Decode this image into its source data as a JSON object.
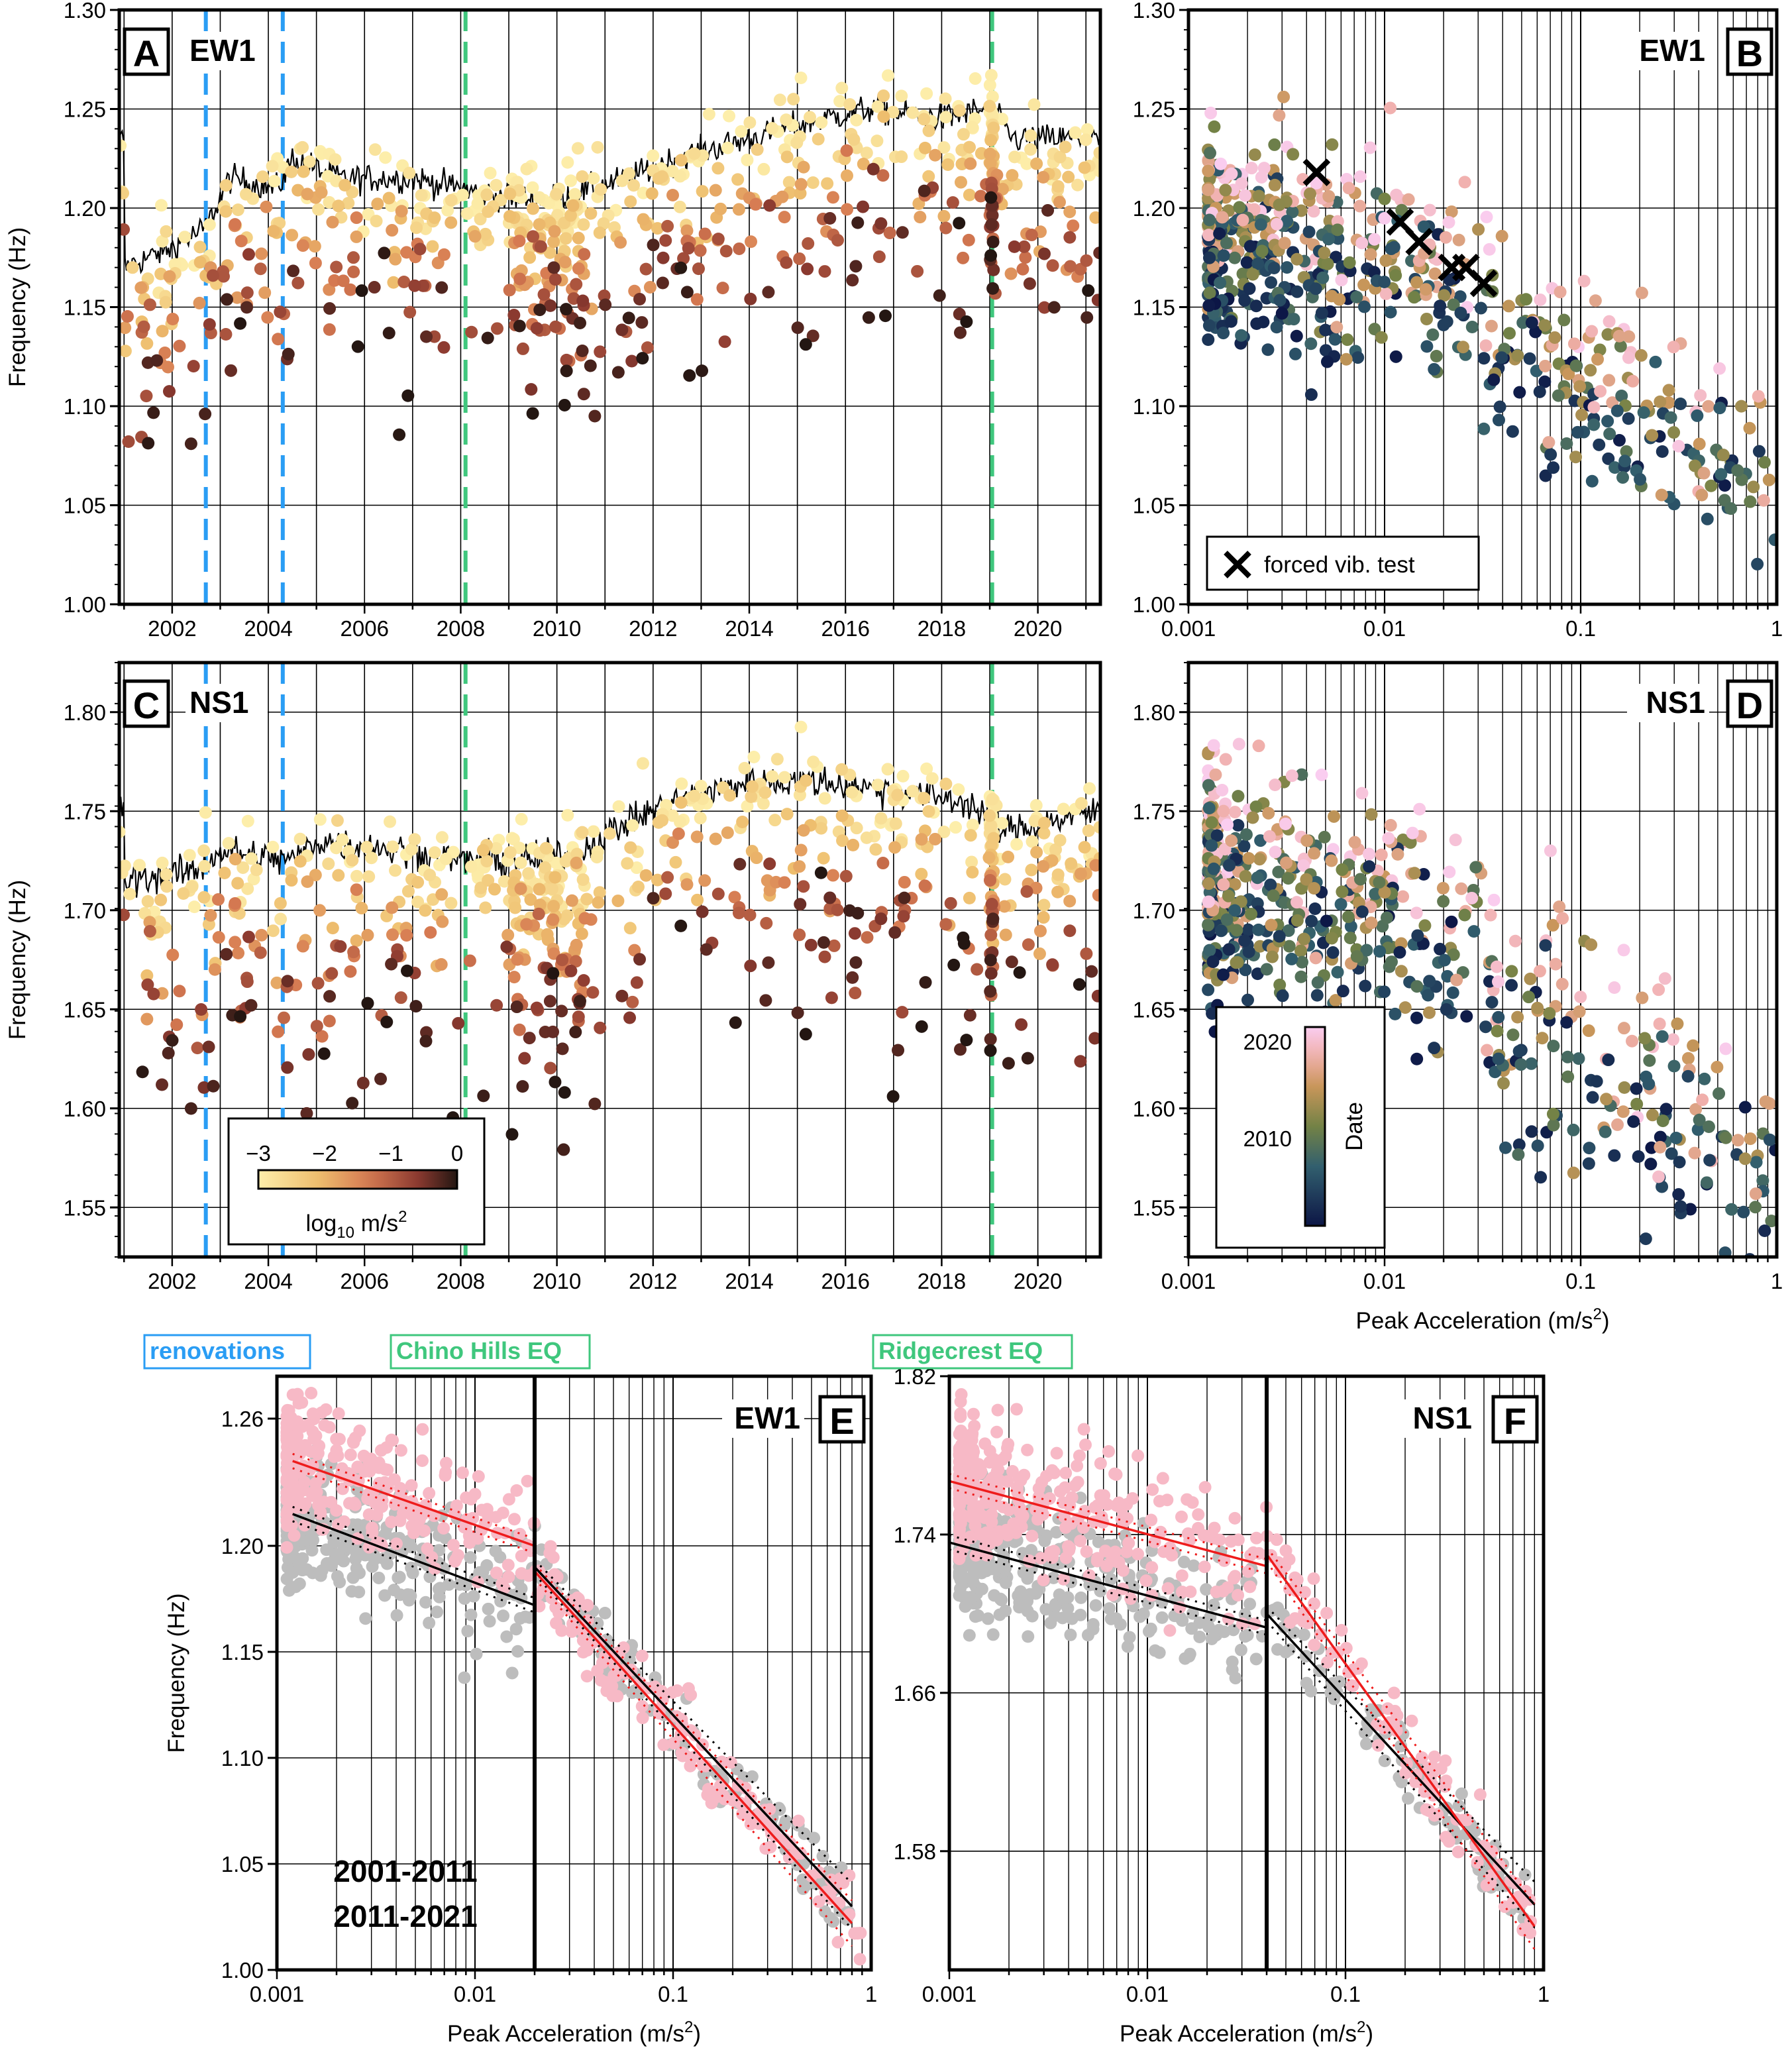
{
  "events": {
    "renovations": {
      "label": "renovations",
      "color": "#2a9df4",
      "dates": [
        2002.7,
        2004.3
      ]
    },
    "chino": {
      "label": "Chino Hills EQ",
      "color": "#3fc77d",
      "dates": [
        2008.1
      ]
    },
    "ridgecrest": {
      "label": "Ridgecrest EQ",
      "color": "#3fc77d",
      "dates": [
        2019.05
      ]
    }
  },
  "colorbar_accel": {
    "ticks": [
      "−3",
      "−2",
      "−1",
      "0"
    ],
    "label_main": "log",
    "label_sub": "10",
    "label_unit": " m/s",
    "label_sup": "2"
  },
  "colorbar_date": {
    "ticks": [
      "2020",
      "2010"
    ],
    "label": "Date"
  },
  "legend_forced": {
    "label": "forced vib. test"
  },
  "legend_periods": {
    "p1": "2001-2011",
    "p2": "2011-2021",
    "c1": "#000000",
    "c2": "#ee1c1c"
  },
  "chart_data": [
    {
      "panel": "A",
      "name": "EW1",
      "type": "scatter",
      "ylabel": "Frequency (Hz)",
      "xlim": [
        2000.9,
        2021.3
      ],
      "ylim": [
        1.0,
        1.3
      ],
      "xticks": [
        "2002",
        "2004",
        "2006",
        "2008",
        "2010",
        "2012",
        "2014",
        "2016",
        "2018",
        "2020"
      ],
      "yticks": [
        "1.00",
        "1.05",
        "1.10",
        "1.15",
        "1.20",
        "1.25",
        "1.30"
      ],
      "trend": [
        [
          2001.0,
          1.17
        ],
        [
          2002.0,
          1.18
        ],
        [
          2002.7,
          1.19
        ],
        [
          2003.2,
          1.215
        ],
        [
          2004.2,
          1.21
        ],
        [
          2004.5,
          1.225
        ],
        [
          2005.5,
          1.215
        ],
        [
          2007.0,
          1.215
        ],
        [
          2008.0,
          1.21
        ],
        [
          2009.0,
          1.205
        ],
        [
          2010.0,
          1.205
        ],
        [
          2011.5,
          1.215
        ],
        [
          2012.5,
          1.225
        ],
        [
          2014.0,
          1.235
        ],
        [
          2015.5,
          1.245
        ],
        [
          2016.5,
          1.25
        ],
        [
          2018.0,
          1.245
        ],
        [
          2019.0,
          1.25
        ],
        [
          2019.5,
          1.235
        ],
        [
          2021.3,
          1.235
        ]
      ]
    },
    {
      "panel": "B",
      "name": "EW1",
      "type": "scatter",
      "xscale": "log",
      "xlim": [
        0.001,
        1
      ],
      "ylim": [
        1.0,
        1.3
      ],
      "xticks": [
        "0.001",
        "0.01",
        "0.1",
        "1"
      ],
      "yticks": [
        "1.00",
        "1.05",
        "1.10",
        "1.15",
        "1.20",
        "1.25",
        "1.30"
      ],
      "forced_vib": [
        [
          0.0045,
          1.218
        ],
        [
          0.012,
          1.193
        ],
        [
          0.015,
          1.183
        ],
        [
          0.022,
          1.17
        ],
        [
          0.026,
          1.17
        ],
        [
          0.032,
          1.162
        ]
      ]
    },
    {
      "panel": "C",
      "name": "NS1",
      "type": "scatter",
      "ylabel": "Frequency (Hz)",
      "xlim": [
        2000.9,
        2021.3
      ],
      "ylim": [
        1.525,
        1.825
      ],
      "xticks": [
        "2002",
        "2004",
        "2006",
        "2008",
        "2010",
        "2012",
        "2014",
        "2016",
        "2018",
        "2020"
      ],
      "yticks": [
        "1.55",
        "1.60",
        "1.65",
        "1.70",
        "1.75",
        "1.80"
      ],
      "trend": [
        [
          2001.0,
          1.715
        ],
        [
          2002.5,
          1.72
        ],
        [
          2003.0,
          1.73
        ],
        [
          2004.5,
          1.725
        ],
        [
          2005.0,
          1.735
        ],
        [
          2007.0,
          1.73
        ],
        [
          2008.0,
          1.725
        ],
        [
          2009.5,
          1.725
        ],
        [
          2010.5,
          1.73
        ],
        [
          2011.5,
          1.745
        ],
        [
          2012.5,
          1.755
        ],
        [
          2014.0,
          1.765
        ],
        [
          2015.5,
          1.765
        ],
        [
          2017.0,
          1.76
        ],
        [
          2018.5,
          1.755
        ],
        [
          2019.3,
          1.74
        ],
        [
          2021.3,
          1.75
        ]
      ]
    },
    {
      "panel": "D",
      "name": "NS1",
      "type": "scatter",
      "xscale": "log",
      "xlabel": "Peak Acceleration (m/s²)",
      "xlim": [
        0.001,
        1
      ],
      "ylim": [
        1.525,
        1.825
      ],
      "xticks": [
        "0.001",
        "0.01",
        "0.1",
        "1"
      ],
      "yticks": [
        "1.55",
        "1.60",
        "1.65",
        "1.70",
        "1.75",
        "1.80"
      ]
    },
    {
      "panel": "E",
      "name": "EW1",
      "type": "scatter",
      "xscale": "log",
      "ylabel": "Frequency (Hz)",
      "xlabel": "Peak Acceleration (m/s²)",
      "xlim": [
        0.001,
        1
      ],
      "ylim": [
        1.0,
        1.28
      ],
      "breakpoint": 0.02,
      "xticks": [
        "0.001",
        "0.01",
        "0.1",
        "1"
      ],
      "yticks": [
        "1.00",
        "1.05",
        "1.10",
        "1.15",
        "1.20",
        "1.26"
      ],
      "fit_2001_2011": [
        [
          0.0012,
          1.215
        ],
        [
          0.02,
          1.172
        ],
        [
          0.02,
          1.19
        ],
        [
          0.8,
          1.03
        ]
      ],
      "fit_2011_2021": [
        [
          0.0012,
          1.24
        ],
        [
          0.02,
          1.2
        ],
        [
          0.02,
          1.188
        ],
        [
          0.8,
          1.022
        ]
      ]
    },
    {
      "panel": "F",
      "name": "NS1",
      "type": "scatter",
      "xscale": "log",
      "xlabel": "Peak Acceleration (m/s²)",
      "xlim": [
        0.001,
        1
      ],
      "ylim": [
        1.52,
        1.82
      ],
      "breakpoint": 0.04,
      "xticks": [
        "0.001",
        "0.01",
        "0.1",
        "1"
      ],
      "yticks": [
        "1.58",
        "1.66",
        "1.74",
        "1.82"
      ],
      "fit_2001_2011": [
        [
          0.001,
          1.736
        ],
        [
          0.04,
          1.693
        ],
        [
          0.04,
          1.7
        ],
        [
          0.9,
          1.553
        ]
      ],
      "fit_2011_2021": [
        [
          0.001,
          1.767
        ],
        [
          0.04,
          1.724
        ],
        [
          0.04,
          1.73
        ],
        [
          0.9,
          1.542
        ]
      ]
    }
  ]
}
